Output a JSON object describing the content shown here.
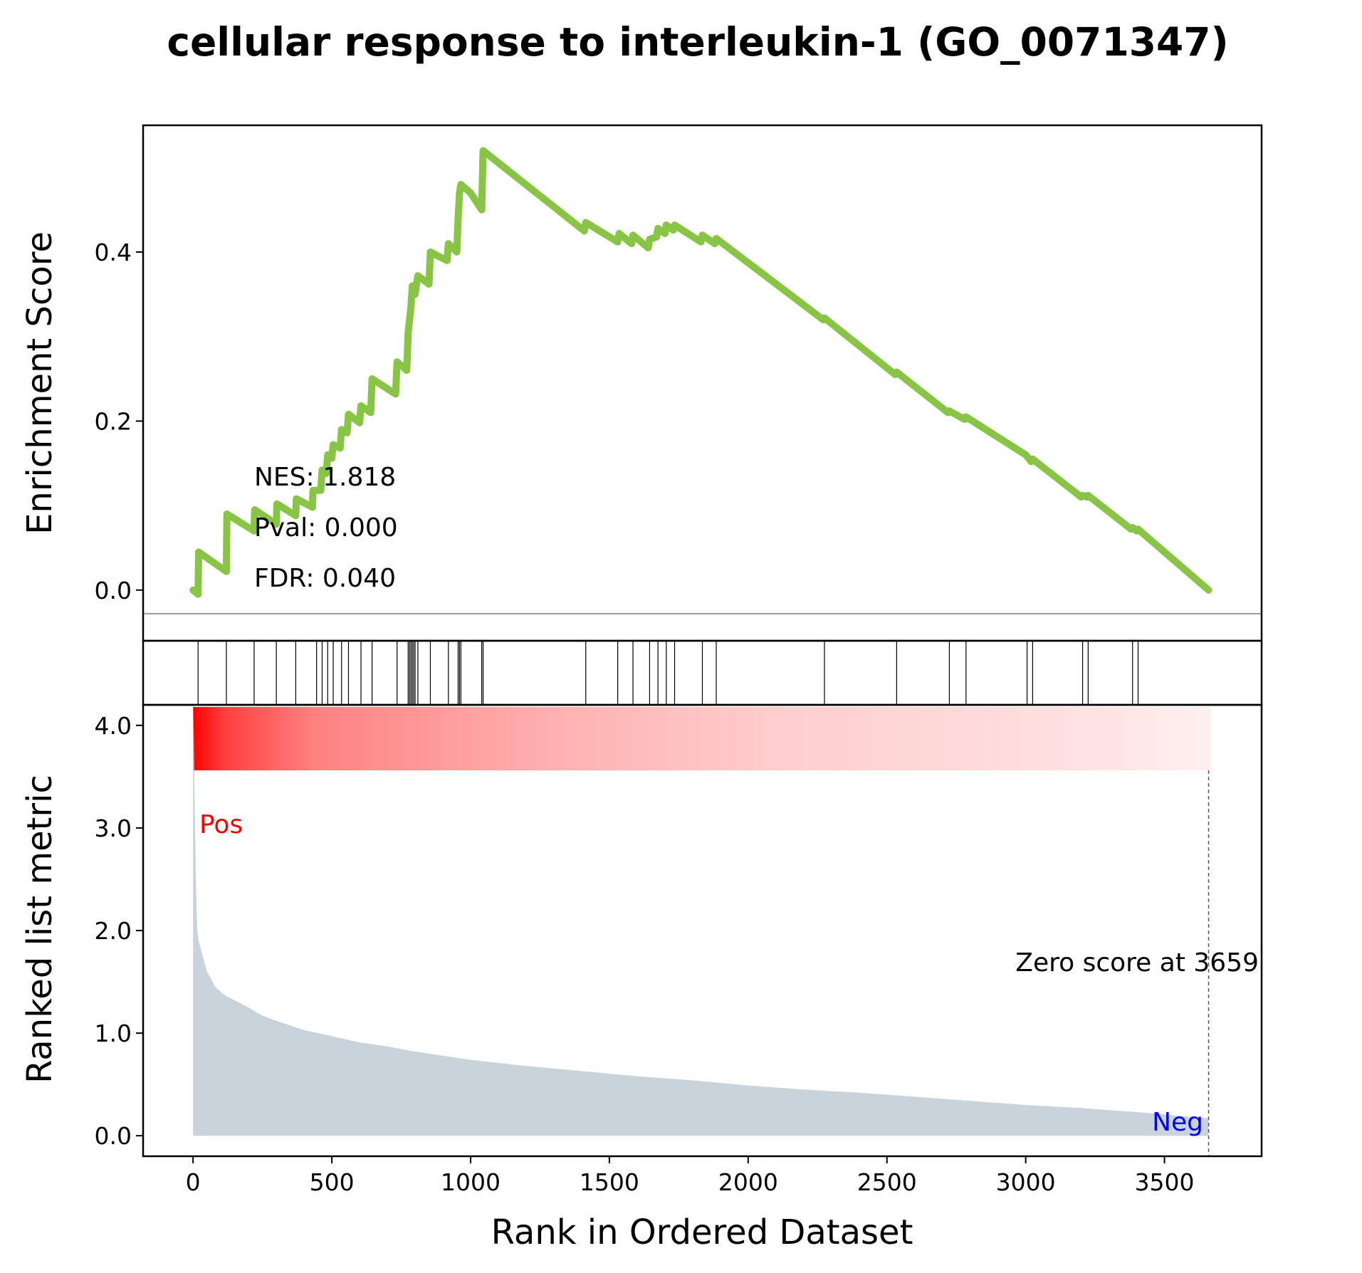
{
  "chart_data": {
    "type": "line",
    "title": "cellular response to interleukin-1 (GO_0071347)",
    "xlabel": "Rank in Ordered Dataset",
    "es_ylabel": "Enrichment Score",
    "metric_ylabel": "Ranked list metric",
    "xlim": [
      -180,
      3850
    ],
    "x_ticks": [
      0,
      500,
      1000,
      1500,
      2000,
      2500,
      3000,
      3500
    ],
    "es_ylim": [
      -0.06,
      0.55
    ],
    "es_ticks": [
      0.0,
      0.2,
      0.4
    ],
    "es_tick_labels": [
      "0.0",
      "0.2",
      "0.4"
    ],
    "metric_ylim": [
      -0.2,
      4.2
    ],
    "metric_ticks": [
      0.0,
      1.0,
      2.0,
      3.0,
      4.0
    ],
    "metric_tick_labels": [
      "0.0",
      "1.0",
      "2.0",
      "3.0",
      "4.0"
    ],
    "stats": {
      "nes": "NES: 1.818",
      "pval": "Pval: 0.000",
      "fdr": "FDR: 0.040"
    },
    "pos_label": "Pos",
    "neg_label": "Neg",
    "zero_score_label": "Zero score at 3659",
    "zero_score_rank": 3659,
    "line_color": "#88c544",
    "metric_fill_color": "#c9d3dc",
    "pos_color": "#ff0000",
    "neg_color": "#0000ff",
    "running_es": {
      "x": [
        0,
        18,
        20,
        120,
        122,
        220,
        222,
        300,
        302,
        370,
        372,
        430,
        432,
        460,
        465,
        480,
        485,
        500,
        505,
        530,
        535,
        555,
        560,
        600,
        605,
        640,
        645,
        730,
        735,
        770,
        775,
        785,
        790,
        800,
        810,
        850,
        855,
        915,
        920,
        950,
        955,
        960,
        965,
        1000,
        1040,
        1045,
        1410,
        1415,
        1530,
        1535,
        1580,
        1585,
        1640,
        1645,
        1670,
        1675,
        1700,
        1705,
        1730,
        1735,
        1830,
        1835,
        1880,
        1885,
        2270,
        2275,
        2530,
        2535,
        2720,
        2725,
        2780,
        2785,
        3000,
        3005,
        3020,
        3025,
        3200,
        3205,
        3220,
        3225,
        3380,
        3385,
        3400,
        3405,
        3659
      ],
      "y": [
        0.0,
        -0.005,
        0.045,
        0.022,
        0.09,
        0.07,
        0.095,
        0.078,
        0.102,
        0.088,
        0.108,
        0.098,
        0.118,
        0.118,
        0.142,
        0.138,
        0.16,
        0.156,
        0.172,
        0.168,
        0.19,
        0.186,
        0.208,
        0.198,
        0.218,
        0.21,
        0.25,
        0.232,
        0.27,
        0.26,
        0.305,
        0.335,
        0.36,
        0.35,
        0.372,
        0.362,
        0.4,
        0.39,
        0.41,
        0.4,
        0.44,
        0.47,
        0.48,
        0.47,
        0.45,
        0.52,
        0.425,
        0.435,
        0.412,
        0.422,
        0.41,
        0.42,
        0.405,
        0.415,
        0.418,
        0.428,
        0.422,
        0.432,
        0.426,
        0.432,
        0.412,
        0.42,
        0.41,
        0.416,
        0.32,
        0.322,
        0.255,
        0.258,
        0.21,
        0.212,
        0.202,
        0.205,
        0.16,
        0.158,
        0.152,
        0.155,
        0.11,
        0.112,
        0.11,
        0.112,
        0.072,
        0.074,
        0.07,
        0.072,
        0.0
      ]
    },
    "hit_ranks": [
      18,
      120,
      220,
      300,
      370,
      445,
      465,
      485,
      505,
      535,
      560,
      605,
      645,
      735,
      775,
      780,
      785,
      790,
      795,
      800,
      810,
      855,
      920,
      955,
      960,
      965,
      1040,
      1045,
      1415,
      1530,
      1585,
      1645,
      1675,
      1705,
      1735,
      1835,
      1885,
      2275,
      2535,
      2725,
      2785,
      3005,
      3025,
      3205,
      3225,
      3385,
      3405
    ],
    "ranked_metric": {
      "x": [
        0,
        2,
        5,
        10,
        15,
        20,
        30,
        40,
        50,
        60,
        80,
        100,
        120,
        150,
        200,
        250,
        300,
        400,
        500,
        600,
        700,
        800,
        900,
        1000,
        1200,
        1400,
        1600,
        1800,
        2000,
        2200,
        2400,
        2600,
        2800,
        3000,
        3200,
        3400,
        3659
      ],
      "y": [
        4.3,
        4.0,
        3.4,
        2.5,
        2.0,
        1.9,
        1.8,
        1.7,
        1.6,
        1.55,
        1.45,
        1.4,
        1.36,
        1.32,
        1.25,
        1.17,
        1.12,
        1.03,
        0.97,
        0.91,
        0.87,
        0.82,
        0.78,
        0.74,
        0.68,
        0.63,
        0.58,
        0.54,
        0.49,
        0.45,
        0.42,
        0.38,
        0.34,
        0.3,
        0.27,
        0.23,
        0.17
      ]
    }
  }
}
